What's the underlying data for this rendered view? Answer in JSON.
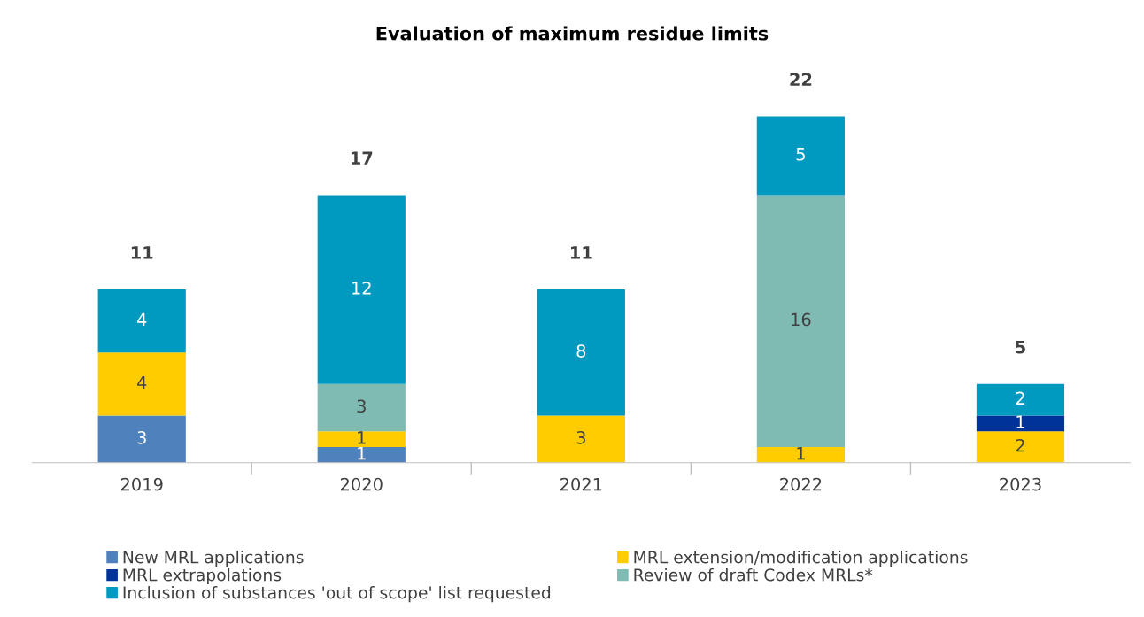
{
  "chart_data": {
    "type": "bar",
    "title": "Evaluation of maximum residue limits",
    "categories": [
      "2019",
      "2020",
      "2021",
      "2022",
      "2023"
    ],
    "stacked": true,
    "series": [
      {
        "name": "New MRL applications",
        "color": "#4f81bd",
        "values": [
          3,
          1,
          null,
          null,
          null
        ]
      },
      {
        "name": "MRL extension/modification applications",
        "color": "#ffcc00",
        "values": [
          4,
          1,
          3,
          1,
          2
        ]
      },
      {
        "name": "MRL extrapolations",
        "color": "#003399",
        "values": [
          null,
          null,
          null,
          null,
          1
        ]
      },
      {
        "name": "Review of draft Codex MRLs*",
        "color": "#7fbab3",
        "values": [
          null,
          3,
          null,
          16,
          null
        ]
      },
      {
        "name": "Inclusion of substances 'out of scope' list requested",
        "color": "#009ac0",
        "values": [
          4,
          12,
          8,
          5,
          2
        ]
      }
    ],
    "data_labels": true,
    "totals": [
      "11",
      "17",
      "11",
      "22",
      "5"
    ],
    "grid": false,
    "legend": "bottom"
  }
}
